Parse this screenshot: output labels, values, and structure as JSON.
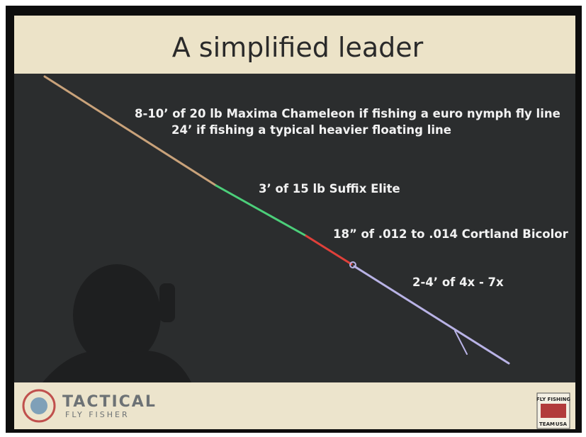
{
  "header": {
    "title": "A simplified leader"
  },
  "annotations": [
    "8-10’ of 20 lb Maxima Chameleon if fishing a euro nymph fly line",
    "24’ if fishing a typical heavier floating line",
    "3’ of 15 lb Suffix Elite",
    "18” of .012 to .014 Cortland Bicolor",
    "2-4’ of 4x - 7x"
  ],
  "footer": {
    "logo_left": {
      "line1": "TACTICAL",
      "line2": "FLY FISHER"
    },
    "logo_right": {
      "line1": "FLY FISHING",
      "line2": "TEAM",
      "line3": "USA"
    }
  }
}
